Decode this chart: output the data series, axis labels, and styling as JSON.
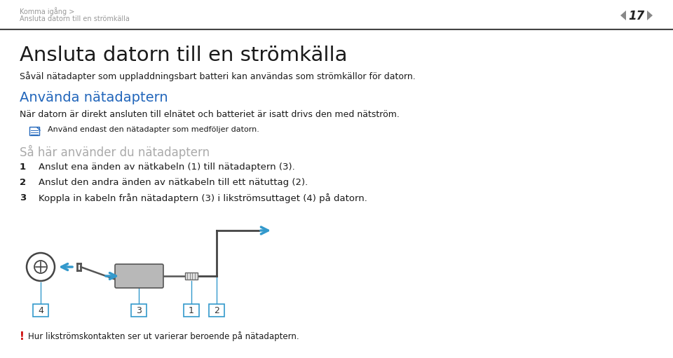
{
  "bg_color": "#f5f5f5",
  "page_bg": "#ffffff",
  "header_line_color": "#555555",
  "breadcrumb1": "Komma igång >",
  "breadcrumb2": "Ansluta datorn till en strömkälla",
  "page_num": "17",
  "title": "Ansluta datorn till en strömkälla",
  "subtitle1": "Såväl nätadapter som uppladdningsbart batteri kan användas som strömkällor för datorn.",
  "section_heading": "Använda nätadaptern",
  "section_heading_color": "#2266bb",
  "section_text": "När datorn är direkt ansluten till elnätet och batteriet är isatt drivs den med nätström.",
  "note_text": "Använd endast den nätadapter som medföljer datorn.",
  "steps_heading": "Så här använder du nätadaptern",
  "steps_heading_color": "#aaaaaa",
  "step1": "Anslut ena änden av nätkabeln (1) till nätadaptern (3).",
  "step2": "Anslut den andra änden av nätkabeln till ett nätuttag (2).",
  "step3": "Koppla in kabeln från nätadaptern (3) i likströmsuttaget (4) på datorn.",
  "footer_excl": "!",
  "footer_text": "Hur likströmskontakten ser ut varierar beroende på nätadaptern.",
  "arrow_color": "#3399cc",
  "label_color": "#3399cc",
  "diagram_line_color": "#444444",
  "text_color": "#1a1a1a",
  "gray_color": "#888888",
  "header_text_color": "#999999"
}
